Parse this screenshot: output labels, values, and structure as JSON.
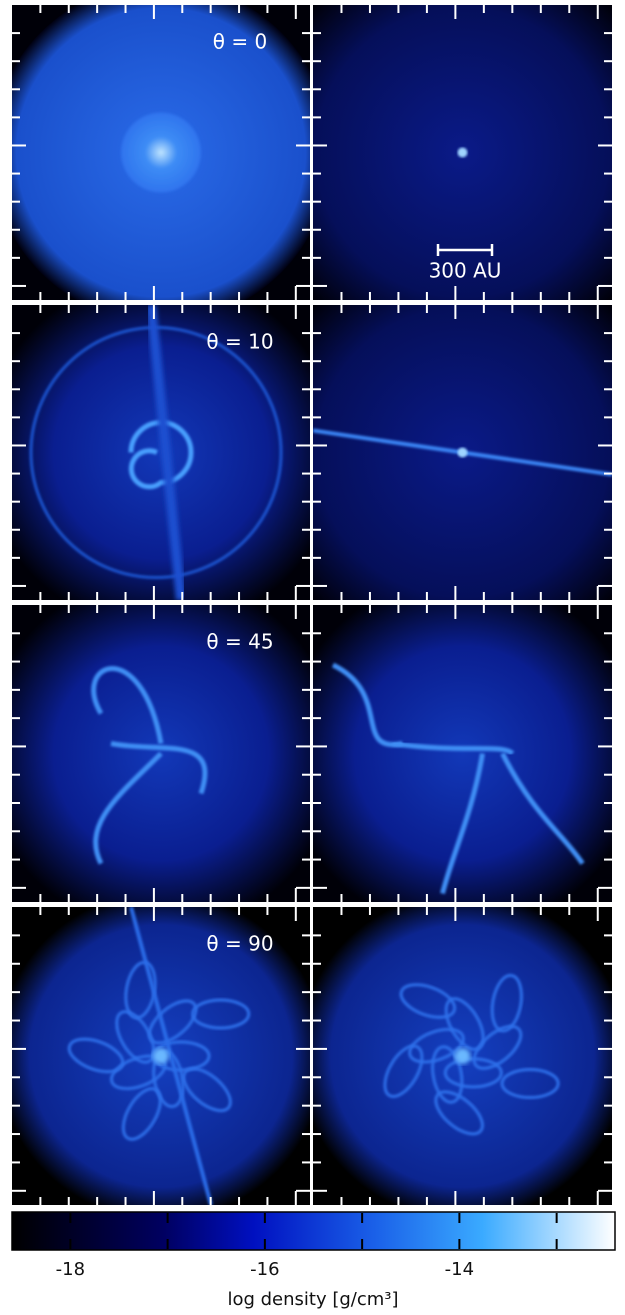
{
  "rows": [
    {
      "label": "θ = 0"
    },
    {
      "label": "θ = 10"
    },
    {
      "label": "θ = 45"
    },
    {
      "label": "θ = 90"
    }
  ],
  "scale_bar": "300 AU",
  "colorbar": {
    "clim": [
      -18.6,
      -12.4
    ],
    "ticks": [
      -18,
      -16,
      -14
    ],
    "minor_ticks": [
      -17,
      -15,
      -13
    ],
    "label": "log density [g/cm³]"
  }
}
